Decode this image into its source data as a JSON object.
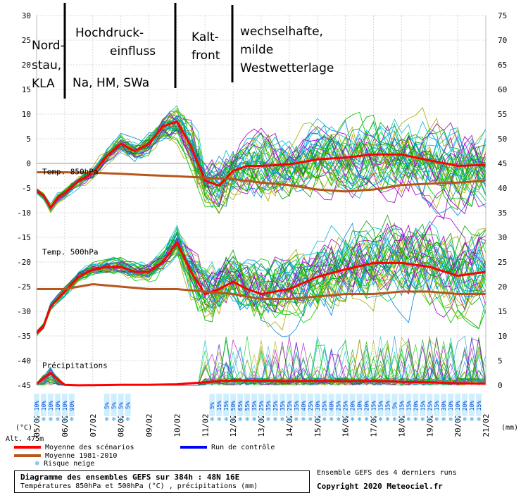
{
  "chart_data": {
    "type": "line",
    "title": "Diagramme des ensembles GEFS sur 384h : 48N 16E",
    "subtitle": "Températures 850hPa et 500hPa (°C) , précipitations (mm)",
    "source_note": "Ensemble GEFS des 4 derniers runs",
    "copyright": "Copyright 2020 Meteociel.fr",
    "altitude": "Alt. 475m",
    "y_left_unit": "(°C)",
    "y_right_unit": "(mm)",
    "y_left_ticks": [
      30,
      25,
      20,
      15,
      10,
      5,
      0,
      -5,
      -10,
      -15,
      -20,
      -25,
      -30,
      -35,
      -40,
      -45
    ],
    "y_left_range": [
      -45,
      30
    ],
    "y_right_ticks": [
      75,
      70,
      65,
      60,
      55,
      50,
      45,
      40,
      35,
      30,
      25,
      20,
      15,
      10,
      5,
      0
    ],
    "y_right_range": [
      0,
      75
    ],
    "x_labels": [
      "05/02",
      "06/02",
      "07/02",
      "08/02",
      "09/02",
      "10/02",
      "11/02",
      "12/02",
      "13/02",
      "14/02",
      "15/02",
      "16/02",
      "17/02",
      "18/02",
      "19/02",
      "20/02",
      "21/02"
    ],
    "x_hours": [
      0,
      24,
      48,
      72,
      96,
      120,
      144,
      168,
      192,
      216,
      240,
      264,
      288,
      312,
      336,
      360,
      384
    ],
    "panel_labels": [
      "Temp. 850hPa",
      "Temp. 500hPa",
      "Précipitations"
    ],
    "series": [
      {
        "name": "Moyenne des scénarios",
        "color": "#ff0000",
        "panel": "Temp. 850hPa",
        "x": [
          0,
          6,
          12,
          18,
          24,
          36,
          48,
          60,
          72,
          84,
          96,
          108,
          120,
          132,
          144,
          156,
          168,
          180,
          192,
          216,
          240,
          264,
          288,
          312,
          336,
          360,
          384
        ],
        "y": [
          -5.5,
          -6.5,
          -9,
          -7,
          -6,
          -3.5,
          -2,
          1.5,
          4,
          2.5,
          4,
          7.5,
          8.5,
          3.5,
          -3.5,
          -4.5,
          -1.5,
          -0.5,
          -0.5,
          -0.2,
          0.8,
          1.2,
          1.8,
          1.8,
          0.6,
          -0.5,
          -0.3
        ]
      },
      {
        "name": "Moyenne 1981-2010",
        "color": "#b8561a",
        "panel": "Temp. 850hPa",
        "x": [
          0,
          24,
          48,
          72,
          96,
          120,
          144,
          168,
          192,
          216,
          240,
          264,
          288,
          312,
          336,
          360,
          384
        ],
        "y": [
          -1.8,
          -1.8,
          -1.9,
          -2.1,
          -2.4,
          -2.6,
          -2.9,
          -3.2,
          -3.9,
          -4.4,
          -5.3,
          -5.7,
          -5.3,
          -4.4,
          -4.1,
          -3.9,
          -3.5
        ]
      },
      {
        "name": "Moyenne des scénarios",
        "color": "#ff0000",
        "panel": "Temp. 500hPa",
        "x": [
          0,
          6,
          12,
          24,
          36,
          48,
          60,
          72,
          84,
          96,
          108,
          120,
          132,
          144,
          156,
          168,
          180,
          192,
          216,
          240,
          264,
          288,
          312,
          336,
          360,
          384
        ],
        "y": [
          -34.5,
          -33,
          -29,
          -26,
          -23,
          -21.5,
          -21,
          -21,
          -22,
          -22,
          -20,
          -16,
          -22,
          -26.5,
          -25.5,
          -24,
          -25.5,
          -26.5,
          -25.5,
          -23,
          -21.5,
          -20.2,
          -20.2,
          -21,
          -22.8,
          -22
        ]
      },
      {
        "name": "Moyenne 1981-2010",
        "color": "#b8561a",
        "panel": "Temp. 500hPa",
        "x": [
          0,
          24,
          48,
          72,
          96,
          120,
          144,
          168,
          192,
          216,
          240,
          264,
          288,
          312,
          336,
          360,
          384
        ],
        "y": [
          -25.5,
          -25.5,
          -24.5,
          -25,
          -25.5,
          -25.5,
          -26,
          -26.5,
          -27.5,
          -27.5,
          -27,
          -26.5,
          -26.5,
          -26,
          -26,
          -26.5,
          -26.5
        ]
      },
      {
        "name": "Précipitations (moyenne)",
        "color": "#ff0000",
        "panel": "Précipitations",
        "x": [
          0,
          12,
          18,
          24,
          36,
          72,
          96,
          120,
          144,
          168,
          192,
          216,
          240,
          264,
          288,
          312,
          336,
          360,
          384
        ],
        "y": [
          0.3,
          2.5,
          1.2,
          0.1,
          0,
          0.1,
          0.1,
          0.2,
          0.6,
          1.0,
          0.9,
          0.8,
          0.9,
          0.8,
          0.9,
          0.7,
          0.6,
          0.4,
          0.3
        ]
      }
    ],
    "snow_risk": {
      "label": "Risque neige",
      "groups": [
        {
          "start_hour": 0,
          "values": [
            "10%",
            "10%",
            "10%",
            "10%",
            "10%",
            "90%"
          ]
        },
        {
          "start_hour": 60,
          "values": [
            "5%",
            "5%",
            "5%",
            "5%"
          ]
        },
        {
          "start_hour": 150,
          "values": [
            "5%",
            "15%",
            "15%",
            "50%",
            "65%",
            "55%",
            "35%",
            "25%",
            "35%",
            "25%",
            "35%",
            "25%",
            "35%",
            "40%",
            "25%",
            "30%",
            "25%",
            "40%",
            "25%",
            "25%",
            "20%",
            "10%",
            "20%",
            "15%",
            "15%",
            "15%",
            "5%",
            "15%",
            "15%",
            "20%",
            "15%",
            "25%",
            "15%",
            "30%",
            "10%",
            "10%",
            "20%",
            "10%",
            "15%"
          ]
        }
      ]
    },
    "legend": [
      {
        "label": "Moyenne des scénarios",
        "color": "#ff0000"
      },
      {
        "label": "Run de contrôle",
        "color": "#0000ff"
      },
      {
        "label": "Moyenne 1981-2010",
        "color": "#b8561a"
      }
    ],
    "annotations": [
      {
        "lines": [
          "Nord-",
          "stau,",
          "KLA"
        ]
      },
      {
        "lines": [
          "Hochdruck-",
          "einfluss"
        ]
      },
      {
        "lines": [
          "Na, HM,  SWa"
        ]
      },
      {
        "lines": [
          "Kalt-",
          "front"
        ]
      },
      {
        "lines": [
          "wechselhafte,",
          "milde",
          "Westwetterlage"
        ]
      }
    ],
    "ensemble_colors": [
      "#00a000",
      "#00cc00",
      "#aaaa00",
      "#a000c0",
      "#0088dd",
      "#00bbcc"
    ]
  }
}
